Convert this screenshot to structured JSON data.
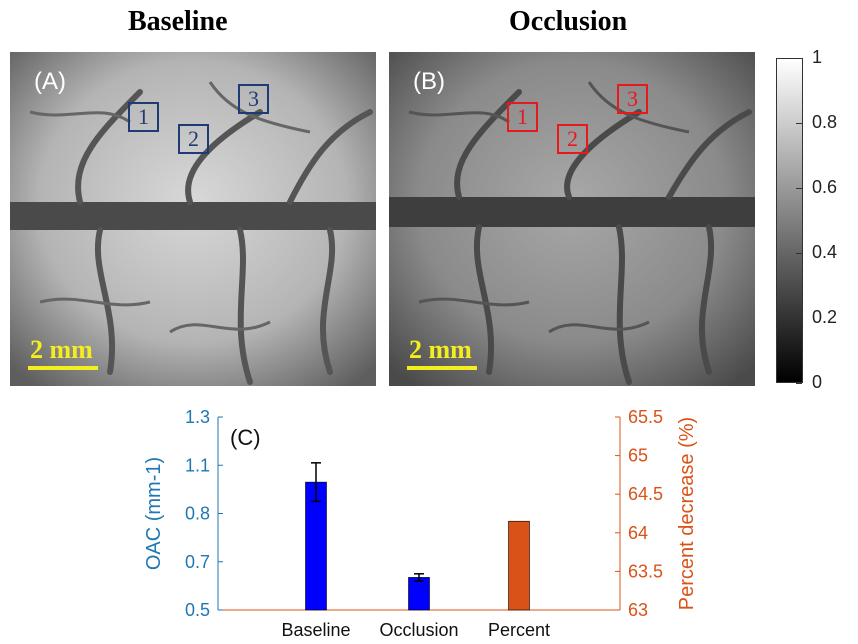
{
  "panels": [
    {
      "title": "Baseline",
      "label": "(A)",
      "scale_label": "2 mm",
      "rois": [
        {
          "label": "1"
        },
        {
          "label": "2"
        },
        {
          "label": "3"
        }
      ]
    },
    {
      "title": "Occlusion",
      "label": "(B)",
      "scale_label": "2 mm",
      "rois": [
        {
          "label": "1"
        },
        {
          "label": "2"
        },
        {
          "label": "3"
        }
      ]
    }
  ],
  "colorbar": {
    "ticks": [
      "1",
      "0.8",
      "0.6",
      "0.4",
      "0.2",
      "0"
    ],
    "range": [
      0,
      1
    ],
    "colormap": "gray"
  },
  "colors": {
    "roi_baseline": "#1f3b73",
    "roi_occlusion": "#e8191c",
    "scale_bar": "#f5ee1e",
    "left_axis": "#1f77b4",
    "right_axis": "#d95319",
    "bar_oac": "#0000ff",
    "bar_percent": "#d95319"
  },
  "chart_data": {
    "type": "bar",
    "panel_label": "(C)",
    "categories": [
      "Baseline",
      "Occlusion",
      "Percent"
    ],
    "ylabel": "OAC (mm-1)",
    "ylabel_right": "Percent decrease (%)",
    "ylim": [
      0.5,
      1.3
    ],
    "ylim_right": [
      63,
      65.5
    ],
    "yticks": [
      "0.5",
      "0.7",
      "0.8",
      "1.1",
      "1.3"
    ],
    "yticks_right": [
      "63",
      "63.5",
      "64",
      "64.5",
      "65",
      "65.5"
    ],
    "series": [
      {
        "axis": "left",
        "values": [
          1.03,
          0.635,
          null
        ],
        "errors": [
          0.08,
          0.015,
          null
        ]
      },
      {
        "axis": "right",
        "values": [
          null,
          null,
          64.15
        ]
      }
    ]
  }
}
